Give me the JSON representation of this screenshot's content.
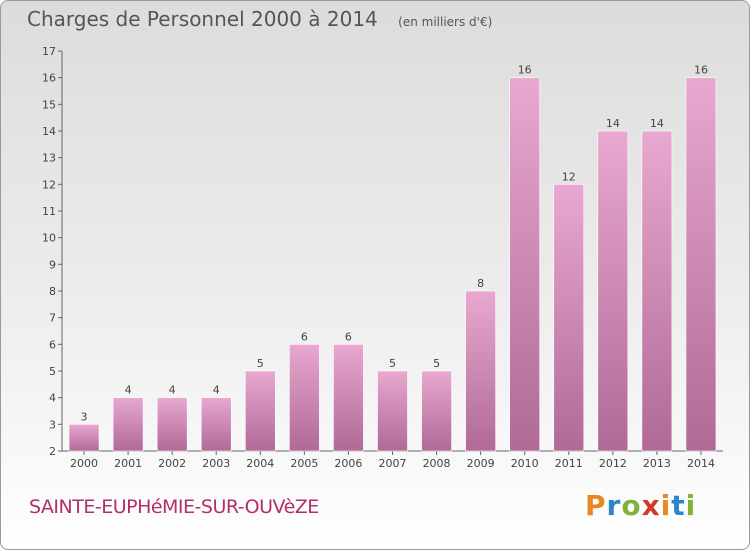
{
  "header": {
    "title": "Charges de Personnel 2000 à 2014",
    "unit": "(en milliers d'€)"
  },
  "footer": {
    "town": "SAINTE-EUPHéMIE-SUR-OUVèZE",
    "brand": "Proxiti"
  },
  "colors": {
    "bar_light": "#e8a8d0",
    "bar_dark": "#b06a95",
    "town_text": "#b0306a"
  },
  "chart_data": {
    "type": "bar",
    "categories": [
      "2000",
      "2001",
      "2002",
      "2003",
      "2004",
      "2005",
      "2006",
      "2007",
      "2008",
      "2009",
      "2010",
      "2011",
      "2012",
      "2013",
      "2014"
    ],
    "values": [
      3,
      4,
      4,
      4,
      5,
      6,
      6,
      5,
      5,
      8,
      16,
      12,
      14,
      14,
      16
    ],
    "ylim": [
      2,
      17
    ],
    "yticks": [
      2,
      3,
      4,
      5,
      6,
      7,
      8,
      9,
      10,
      11,
      12,
      13,
      14,
      15,
      16,
      17
    ],
    "grid": false,
    "data_labels": true
  }
}
